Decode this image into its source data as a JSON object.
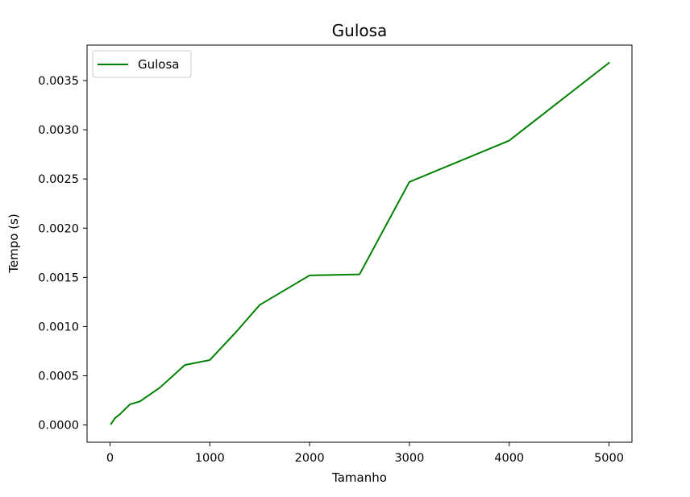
{
  "chart_data": {
    "type": "line",
    "title": "Gulosa",
    "xlabel": "Tamanho",
    "ylabel": "Tempo (s)",
    "xlim": [
      -230,
      5230
    ],
    "ylim": [
      -0.000175,
      0.00386
    ],
    "xticks": [
      0,
      1000,
      2000,
      3000,
      4000,
      5000
    ],
    "xtick_labels": [
      "0",
      "1000",
      "2000",
      "3000",
      "4000",
      "5000"
    ],
    "yticks": [
      0.0,
      0.0005,
      0.001,
      0.0015,
      0.002,
      0.0025,
      0.003,
      0.0035
    ],
    "ytick_labels": [
      "0.0000",
      "0.0005",
      "0.0010",
      "0.0015",
      "0.0020",
      "0.0025",
      "0.0030",
      "0.0035"
    ],
    "grid": false,
    "legend_position": "top-left",
    "series": [
      {
        "name": "Gulosa",
        "color": "#008000",
        "x": [
          10,
          50,
          100,
          200,
          300,
          500,
          750,
          1000,
          1250,
          1500,
          2000,
          2500,
          3000,
          4000,
          5000
        ],
        "y": [
          1e-05,
          7e-05,
          0.00011,
          0.00021,
          0.00024,
          0.00038,
          0.00061,
          0.00066,
          0.00093,
          0.00122,
          0.00152,
          0.00153,
          0.00247,
          0.00289,
          0.00368
        ]
      }
    ]
  }
}
